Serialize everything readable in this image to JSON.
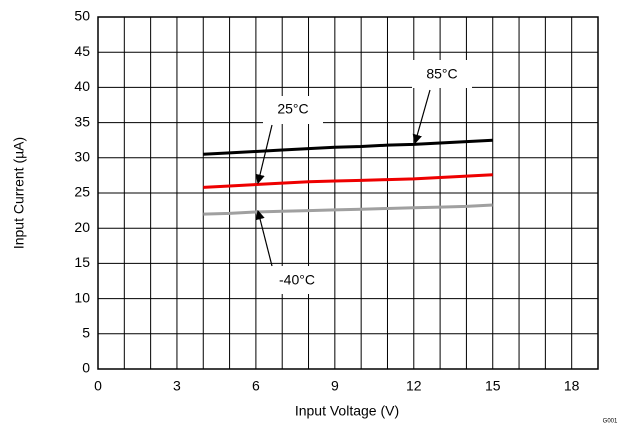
{
  "chart_data": {
    "type": "line",
    "x_label": "Input Voltage (V)",
    "y_label": "Input Current (µA)",
    "code": "G001",
    "x": [
      4,
      5,
      6,
      7,
      8,
      9,
      10,
      11,
      12,
      13,
      14,
      15
    ],
    "series": [
      {
        "name": "85°C",
        "color": "#000000",
        "values": [
          30.5,
          30.7,
          30.9,
          31.1,
          31.3,
          31.5,
          31.6,
          31.8,
          31.9,
          32.1,
          32.3,
          32.5
        ]
      },
      {
        "name": "25°C",
        "color": "#ee0000",
        "values": [
          25.8,
          26.0,
          26.2,
          26.4,
          26.6,
          26.7,
          26.8,
          26.9,
          27.0,
          27.2,
          27.4,
          27.6
        ]
      },
      {
        "name": "-40°C",
        "color": "#a0a0a0",
        "values": [
          22.0,
          22.1,
          22.3,
          22.4,
          22.5,
          22.6,
          22.7,
          22.8,
          22.9,
          23.0,
          23.1,
          23.3
        ]
      }
    ],
    "xlim": [
      0,
      19
    ],
    "ylim": [
      0,
      50
    ],
    "xticks": [
      0,
      3,
      6,
      9,
      12,
      15,
      18
    ],
    "yticks": [
      0,
      5,
      10,
      15,
      20,
      25,
      30,
      35,
      40,
      45,
      50
    ],
    "xgrid": [
      1,
      2,
      3,
      4,
      5,
      6,
      7,
      8,
      9,
      10,
      11,
      12,
      13,
      14,
      15,
      16,
      17,
      18
    ],
    "grid": true
  }
}
